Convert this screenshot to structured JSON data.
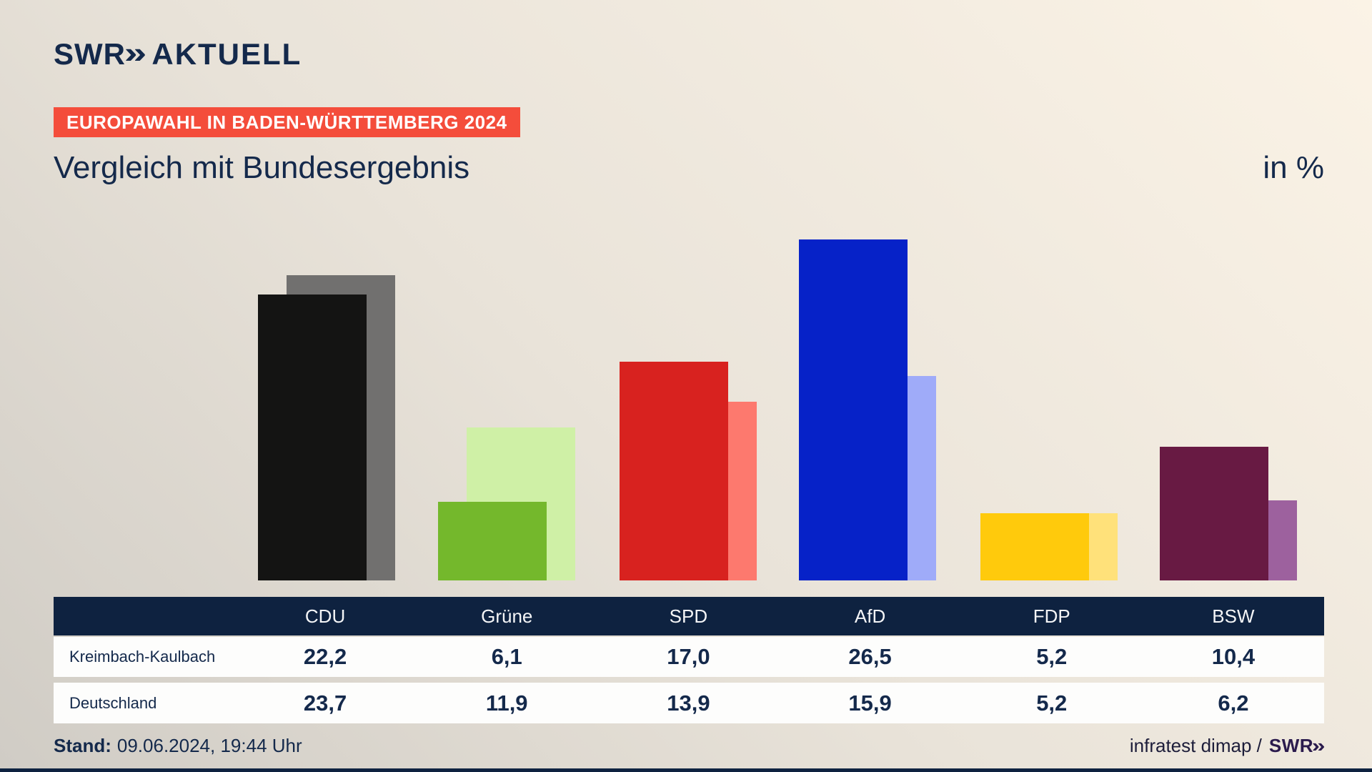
{
  "brand": {
    "logo_main": "SWR",
    "logo_chevrons": "»",
    "logo_suffix": "AKTUELL"
  },
  "header": {
    "badge": "EUROPAWAHL IN BADEN-WÜRTTEMBERG 2024",
    "title": "Vergleich mit Bundesergebnis",
    "unit_label": "in %"
  },
  "chart_data": {
    "type": "bar",
    "title": "Vergleich mit Bundesergebnis",
    "unit": "%",
    "categories": [
      "CDU",
      "Grüne",
      "SPD",
      "AfD",
      "FDP",
      "BSW"
    ],
    "series": [
      {
        "name": "Kreimbach-Kaulbach",
        "values": [
          22.2,
          6.1,
          17.0,
          26.5,
          5.2,
          10.4
        ],
        "display": [
          "22,2",
          "6,1",
          "17,0",
          "26,5",
          "5,2",
          "10,4"
        ],
        "colors": [
          "#141413",
          "#74b82c",
          "#d8221f",
          "#0622c8",
          "#ffca0c",
          "#681a43"
        ]
      },
      {
        "name": "Deutschland",
        "values": [
          23.7,
          11.9,
          13.9,
          15.9,
          5.2,
          6.2
        ],
        "display": [
          "23,7",
          "11,9",
          "13,9",
          "15,9",
          "5,2",
          "6,2"
        ],
        "colors": [
          "#71706f",
          "#cff0a6",
          "#fd796e",
          "#9fabf9",
          "#ffe17a",
          "#9d619e"
        ]
      }
    ],
    "ylim": [
      0,
      29.5
    ],
    "legend_position": "table-below",
    "grid": false
  },
  "table": {
    "columns": [
      "CDU",
      "Grüne",
      "SPD",
      "AfD",
      "FDP",
      "BSW"
    ],
    "row_labels": [
      "Kreimbach-Kaulbach",
      "Deutschland"
    ]
  },
  "footer": {
    "stand_label": "Stand:",
    "stand_value": "09.06.2024, 19:44 Uhr",
    "source_text": "infratest dimap /",
    "source_logo_main": "SWR",
    "source_logo_chevrons": "»"
  },
  "colors": {
    "accent_red": "#f44d3b",
    "navy": "#14294b",
    "table_header_bg": "#0e2240",
    "row_bg": "#fdfdfc",
    "background_light": "#fbf3e6",
    "background_dark": "#d0ccc5"
  }
}
